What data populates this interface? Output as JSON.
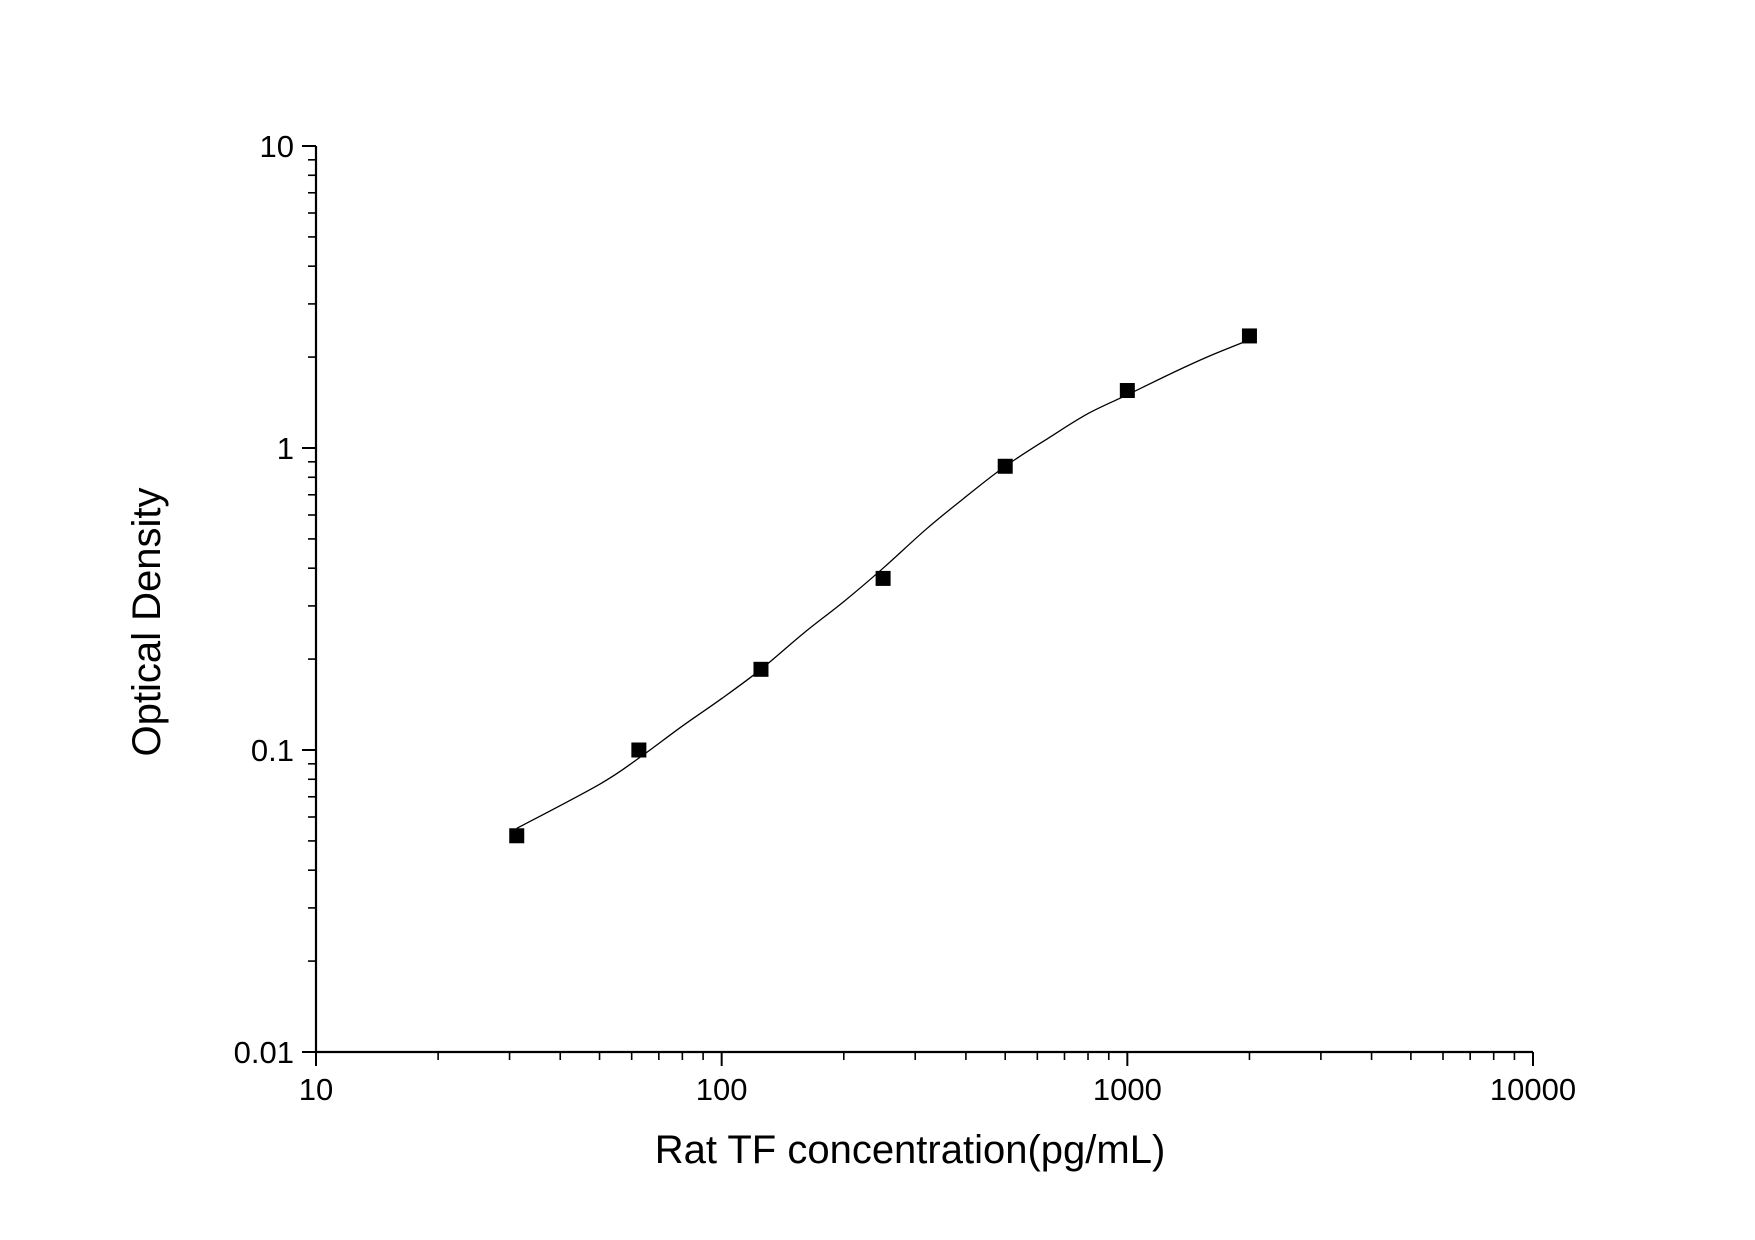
{
  "chart_data": {
    "type": "scatter",
    "title": "",
    "xlabel": "Rat TF concentration(pg/mL)",
    "ylabel": "Optical Density",
    "xscale": "log",
    "yscale": "log",
    "xlim": [
      10,
      10000
    ],
    "ylim": [
      0.01,
      10
    ],
    "x_tick_labels": [
      "10",
      "100",
      "1000",
      "10000"
    ],
    "y_tick_labels": [
      "0.01",
      "0.1",
      "1",
      "10"
    ],
    "grid": false,
    "legend": "none",
    "marker": "square",
    "series": [
      {
        "x": [
          31.25,
          62.5,
          125,
          250,
          500,
          1000,
          2000
        ],
        "y": [
          0.052,
          0.1,
          0.185,
          0.37,
          0.87,
          1.55,
          2.35
        ]
      }
    ],
    "fit_curve": {
      "x": [
        31.25,
        50,
        62.5,
        80,
        100,
        125,
        160,
        200,
        250,
        320,
        400,
        500,
        640,
        800,
        1000,
        1300,
        1600,
        2000
      ],
      "y": [
        0.055,
        0.077,
        0.094,
        0.12,
        0.148,
        0.185,
        0.245,
        0.31,
        0.4,
        0.54,
        0.69,
        0.87,
        1.08,
        1.3,
        1.5,
        1.78,
        2.02,
        2.28
      ]
    },
    "colors": {
      "axis": "#000000",
      "marker": "#000000",
      "line": "#000000",
      "background": "#ffffff"
    }
  }
}
